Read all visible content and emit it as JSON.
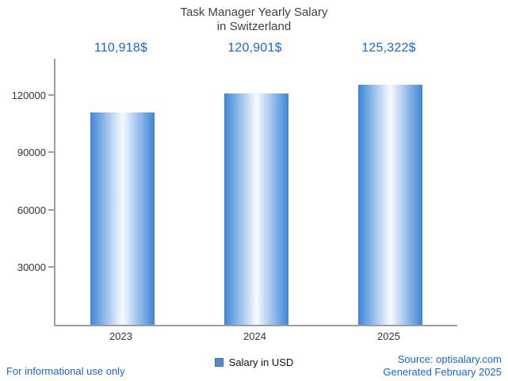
{
  "title": {
    "line1": "Task Manager Yearly Salary",
    "line2": "in Switzerland"
  },
  "chart_data": {
    "type": "bar",
    "title": "Task Manager Yearly Salary in Switzerland",
    "categories": [
      "2023",
      "2024",
      "2025"
    ],
    "values": [
      110918,
      120901,
      125322
    ],
    "value_labels": [
      "110,918$",
      "120,901$",
      "125,322$"
    ],
    "xlabel": "",
    "ylabel": "",
    "ylim": [
      0,
      139000
    ],
    "yticks": [
      30000,
      60000,
      90000,
      120000
    ],
    "grid": false,
    "legend": {
      "label": "Salary in USD",
      "position": "bottom"
    },
    "colors": {
      "bar_edge": "#3d85d8",
      "bar_center": "#f7fbff",
      "value_label": "#1766d1",
      "axis": "#9e9e9e",
      "text": "#333333",
      "link": "#1766d1",
      "legend_swatch": "#5a87cc"
    }
  },
  "footer": {
    "left": "For informational use only",
    "source": "Source: optisalary.com",
    "generated": "Generated February 2025"
  }
}
